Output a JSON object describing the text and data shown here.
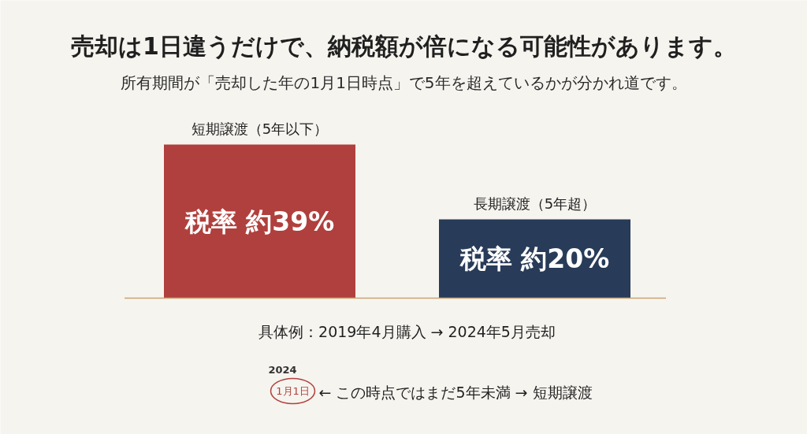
{
  "chart_data": {
    "type": "bar",
    "title": "売却は1日違うだけで、納税額が倍になる可能性があります。",
    "subtitle": "所有期間が「売却した年の1月1日時点」で5年を超えているかが分かれ道です。",
    "categories": [
      "短期譲渡（5年以下）",
      "長期譲渡（5年超）"
    ],
    "values": [
      39,
      20
    ],
    "colors": [
      "#b0403d",
      "#283b58"
    ],
    "value_labels": [
      "税率 約39%",
      "税率 約20%"
    ],
    "annotations": [
      "具体例：2019年4月購入 → 2024年5月売却",
      "2024",
      "1月1日",
      "← この時点ではまだ5年未満 → 短期譲渡"
    ]
  }
}
